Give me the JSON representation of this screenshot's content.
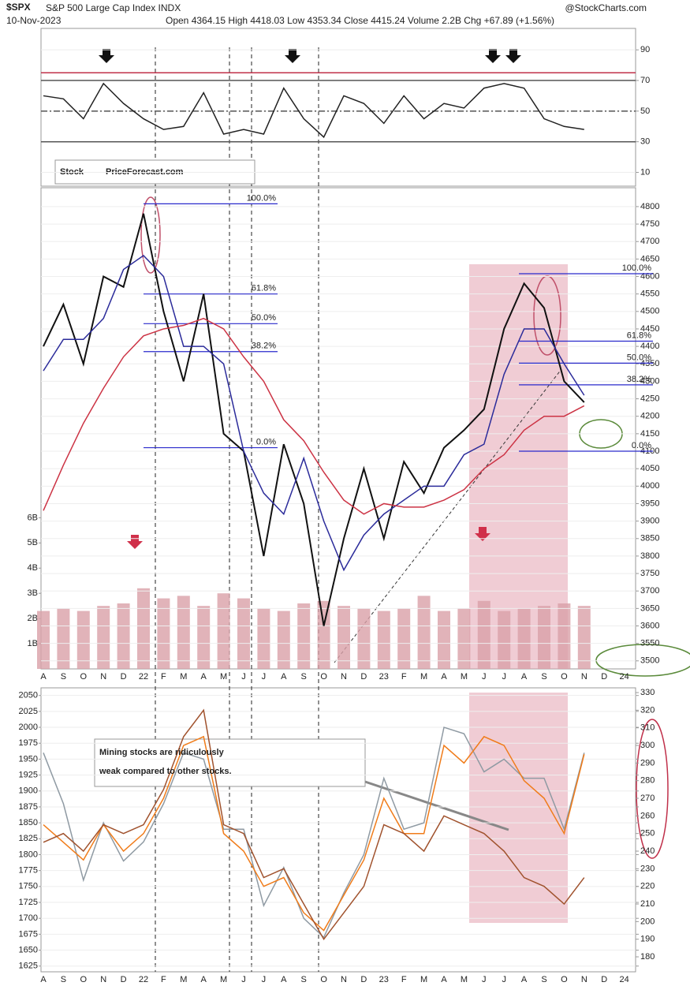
{
  "header": {
    "symbol": "$SPX",
    "name": "S&P 500 Large Cap Index INDX",
    "source": "@StockCharts.com",
    "date": "10-Nov-2023",
    "quote": "Open 4364.15  High 4418.03  Low 4353.34  Close 4415.24  Volume 2.2B  Chg +67.89 (+1.56%)"
  },
  "logo": {
    "part1": "Stock",
    "part2": "PriceForecast.com"
  },
  "chart_data": [
    {
      "type": "line",
      "categories": [
        "A",
        "S",
        "O",
        "N",
        "D",
        "22",
        "F",
        "M",
        "A",
        "M",
        "J",
        "J",
        "A",
        "S",
        "O",
        "N",
        "D",
        "23",
        "F",
        "M",
        "A",
        "M",
        "J",
        "J",
        "A",
        "S",
        "O",
        "N",
        "D",
        "24"
      ],
      "series": [
        {
          "color": "#222222",
          "values": [
            60,
            58,
            45,
            68,
            55,
            45,
            38,
            40,
            62,
            35,
            38,
            35,
            65,
            45,
            33,
            60,
            55,
            42,
            60,
            45,
            55,
            52,
            65,
            68,
            65,
            45,
            40,
            38,
            null,
            null
          ]
        }
      ],
      "ylim": [
        1,
        104
      ],
      "yticks": [
        10,
        30,
        50,
        70,
        90
      ],
      "reference_lines": [
        {
          "value": 75,
          "color": "#c0304a",
          "style": "solid"
        },
        {
          "value": 70,
          "color": "#555555",
          "style": "solid"
        },
        {
          "value": 50,
          "color": "#555555",
          "style": "dash-dot"
        },
        {
          "value": 30,
          "color": "#555555",
          "style": "solid"
        }
      ]
    },
    {
      "type": "line",
      "categories": [
        "A",
        "S",
        "O",
        "N",
        "D",
        "22",
        "F",
        "M",
        "A",
        "M",
        "J",
        "J",
        "A",
        "S",
        "O",
        "N",
        "D",
        "23",
        "F",
        "M",
        "A",
        "M",
        "J",
        "J",
        "A",
        "S",
        "O",
        "N",
        "D",
        "24"
      ],
      "series": [
        {
          "color": "#111111",
          "values": [
            4400,
            4520,
            4350,
            4600,
            4570,
            4780,
            4500,
            4300,
            4550,
            4150,
            4100,
            3800,
            4120,
            3950,
            3600,
            3850,
            4050,
            3850,
            4070,
            3980,
            4110,
            4160,
            4220,
            4450,
            4580,
            4510,
            4300,
            4240,
            null,
            null
          ]
        },
        {
          "color": "#2b2b9a",
          "values": [
            4330,
            4420,
            4420,
            4480,
            4620,
            4660,
            4600,
            4400,
            4400,
            4350,
            4100,
            3980,
            3920,
            4080,
            3900,
            3760,
            3860,
            3920,
            3960,
            4000,
            4000,
            4090,
            4120,
            4320,
            4450,
            4450,
            4350,
            4260,
            null,
            null
          ]
        },
        {
          "color": "#cc3344",
          "values": [
            3930,
            4060,
            4180,
            4280,
            4370,
            4430,
            4450,
            4460,
            4480,
            4450,
            4370,
            4300,
            4190,
            4130,
            4040,
            3960,
            3920,
            3950,
            3940,
            3940,
            3960,
            3990,
            4050,
            4090,
            4160,
            4200,
            4200,
            4230,
            null,
            null
          ]
        }
      ],
      "ylim": [
        3477,
        4854
      ],
      "yticks": [
        3500,
        3550,
        3600,
        3650,
        3700,
        3750,
        3800,
        3850,
        3900,
        3950,
        4000,
        4050,
        4100,
        4150,
        4200,
        4250,
        4300,
        4350,
        4400,
        4450,
        4500,
        4550,
        4600,
        4650,
        4700,
        4750,
        4800
      ],
      "volume": {
        "color": "#d9a0a8",
        "values": [
          2300000000,
          2400000000,
          2300000000,
          2500000000,
          2600000000,
          3200000000,
          2800000000,
          2900000000,
          2500000000,
          3000000000,
          2800000000,
          2400000000,
          2300000000,
          2600000000,
          2700000000,
          2500000000,
          2400000000,
          2300000000,
          2400000000,
          2900000000,
          2300000000,
          2400000000,
          2700000000,
          2300000000,
          2400000000,
          2500000000,
          2600000000,
          2500000000,
          null,
          null
        ],
        "ylim": [
          0,
          19100000000
        ],
        "yticks": [
          {
            "value": 1000000000,
            "label": "1B"
          },
          {
            "value": 2000000000,
            "label": "2B"
          },
          {
            "value": 3000000000,
            "label": "3B"
          },
          {
            "value": 4000000000,
            "label": "4B"
          },
          {
            "value": 5000000000,
            "label": "5B"
          },
          {
            "value": 6000000000,
            "label": "6B"
          }
        ]
      },
      "fib_left": {
        "labels": [
          "100.0%",
          "61.8%",
          "50.0%",
          "38.2%",
          "0.0%"
        ],
        "levels": [
          4808,
          4550,
          4465,
          4385,
          4110
        ]
      },
      "fib_right": {
        "labels": [
          "100.0%",
          "61.8%",
          "50.0%",
          "38.2%",
          "0.0%"
        ],
        "levels": [
          4608,
          4415,
          4352,
          4290,
          4100
        ]
      }
    },
    {
      "type": "line",
      "categories": [
        "A",
        "S",
        "O",
        "N",
        "D",
        "22",
        "F",
        "M",
        "A",
        "M",
        "J",
        "J",
        "A",
        "S",
        "O",
        "N",
        "D",
        "23",
        "F",
        "M",
        "A",
        "M",
        "J",
        "J",
        "A",
        "S",
        "O",
        "N",
        "D",
        "24"
      ],
      "series": [
        {
          "color": "#8f9aa3",
          "values": [
            1960,
            1880,
            1760,
            1850,
            1790,
            1820,
            1880,
            1960,
            1950,
            1840,
            1840,
            1720,
            1780,
            1700,
            1670,
            1740,
            1800,
            1920,
            1840,
            1850,
            2000,
            1990,
            1930,
            1950,
            1920,
            1920,
            1840,
            1960,
            null,
            null
          ]
        },
        {
          "color": "#f07c1a",
          "axis": "y2",
          "values": [
            255,
            245,
            235,
            255,
            240,
            250,
            270,
            300,
            305,
            250,
            240,
            220,
            225,
            205,
            195,
            215,
            235,
            270,
            250,
            250,
            300,
            290,
            305,
            300,
            280,
            270,
            250,
            295,
            null,
            null
          ]
        },
        {
          "color": "#a0522d",
          "axis": "y2",
          "values": [
            245,
            250,
            240,
            255,
            250,
            255,
            275,
            305,
            320,
            255,
            250,
            225,
            230,
            210,
            190,
            205,
            220,
            255,
            250,
            240,
            260,
            255,
            250,
            240,
            225,
            220,
            210,
            225,
            null,
            null
          ]
        }
      ],
      "ylim": [
        1616,
        2062
      ],
      "yticks": [
        1625,
        1650,
        1675,
        1700,
        1725,
        1750,
        1775,
        1800,
        1825,
        1850,
        1875,
        1900,
        1925,
        1950,
        1975,
        2000,
        2025,
        2050
      ],
      "y2lim": [
        171.5,
        332.7
      ],
      "y2ticks": [
        180,
        190,
        200,
        210,
        220,
        230,
        240,
        250,
        260,
        270,
        280,
        290,
        300,
        310,
        320,
        330
      ],
      "annotation_lines": [
        "Mining stocks are ridiculously",
        "weak compared to other stocks."
      ]
    }
  ]
}
